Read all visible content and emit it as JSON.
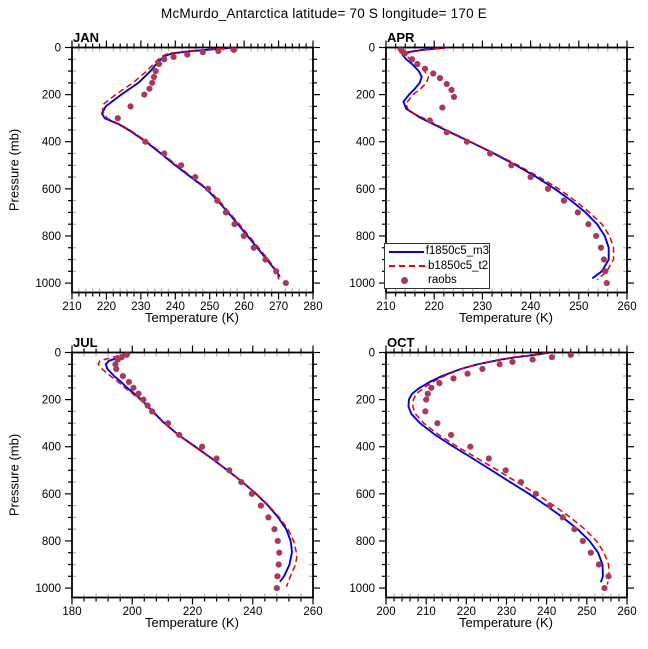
{
  "title": "McMurdo_Antarctica  latitude= 70 S longitude= 170 E",
  "ylabel": "Pressure (mb)",
  "legend": {
    "items": [
      {
        "label": "f1850c5_m3",
        "style": "solid",
        "color": "#0000dd"
      },
      {
        "label": "b1850c5_t2",
        "style": "dashed",
        "color": "#e60000"
      },
      {
        "label": "raobs",
        "style": "dots",
        "color": "#a63a5c"
      }
    ]
  },
  "chart_data": [
    {
      "type": "line",
      "label": "JAN",
      "xlabel": "Temperature (K)",
      "xlim": [
        210,
        280
      ],
      "xticks": [
        210,
        220,
        230,
        240,
        250,
        260,
        270,
        280
      ],
      "xminor": 2,
      "ylim": [
        0,
        1040
      ],
      "yticks": [
        0,
        200,
        400,
        600,
        800,
        1000
      ],
      "yminor": 50,
      "grid": false,
      "series": [
        {
          "name": "f1850c5_m3",
          "style": "solid",
          "pressure": [
            0,
            15,
            25,
            40,
            70,
            100,
            150,
            200,
            250,
            280,
            300,
            325,
            350,
            400,
            450,
            500,
            550,
            600,
            650,
            700,
            750,
            800,
            850,
            900,
            950,
            973
          ],
          "temperature": [
            257.5,
            245,
            239,
            236.5,
            234.5,
            232.8,
            229.3,
            224.3,
            219.8,
            218.7,
            219.5,
            223.5,
            226.5,
            231.5,
            235.8,
            240,
            244.5,
            249,
            252.3,
            255.3,
            258.2,
            261,
            263.8,
            266.6,
            269.3,
            270.4
          ]
        },
        {
          "name": "b1850c5_t2",
          "style": "dashed",
          "pressure": [
            0,
            15,
            25,
            40,
            70,
            100,
            150,
            200,
            240,
            270,
            300,
            325,
            350,
            400,
            450,
            500,
            550,
            600,
            650,
            700,
            750,
            800,
            850,
            900,
            950,
            985
          ],
          "temperature": [
            257,
            244,
            238,
            235.7,
            233.7,
            231.7,
            227.7,
            222.7,
            219.2,
            218.9,
            220.2,
            223.8,
            226.8,
            231.8,
            236.2,
            240.4,
            244.9,
            249.4,
            252.7,
            255.7,
            258.6,
            261.4,
            264.2,
            267,
            269.5,
            270.1
          ]
        },
        {
          "name": "raobs",
          "style": "dots",
          "pressure": [
            10,
            15,
            20,
            30,
            40,
            50,
            70,
            100,
            125,
            150,
            175,
            200,
            250,
            300,
            400,
            450,
            500,
            550,
            600,
            650,
            700,
            750,
            800,
            850,
            900,
            950,
            1000
          ],
          "temperature": [
            257,
            252.5,
            248,
            243.5,
            239.5,
            236.8,
            235.3,
            234.3,
            233.8,
            233.3,
            232.5,
            231,
            227,
            223.3,
            231.3,
            236.8,
            241.7,
            245.8,
            249.5,
            252.2,
            254.7,
            257.2,
            259.9,
            262.8,
            266.2,
            269.3,
            272.1
          ]
        }
      ]
    },
    {
      "type": "line",
      "label": "APR",
      "xlabel": "Temperature (K)",
      "xlim": [
        210,
        260
      ],
      "xticks": [
        210,
        220,
        230,
        240,
        250,
        260
      ],
      "xminor": 2,
      "ylim": [
        0,
        1040
      ],
      "yticks": [
        0,
        200,
        400,
        600,
        800,
        1000
      ],
      "yminor": 50,
      "grid": false,
      "series": [
        {
          "name": "f1850c5_m3",
          "style": "solid",
          "pressure": [
            0,
            10,
            20,
            30,
            50,
            70,
            100,
            125,
            150,
            175,
            200,
            230,
            260,
            300,
            350,
            400,
            450,
            500,
            550,
            600,
            650,
            700,
            750,
            800,
            850,
            900,
            950,
            980
          ],
          "temperature": [
            222.5,
            217.5,
            214.5,
            213.4,
            214.2,
            215.4,
            216.8,
            217.4,
            217,
            216,
            214.8,
            213.6,
            214.2,
            217.3,
            222.3,
            227.4,
            232.4,
            237,
            241.2,
            245,
            248.4,
            251.4,
            253.8,
            255.4,
            256.2,
            256.2,
            254.8,
            252.8
          ]
        },
        {
          "name": "b1850c5_t2",
          "style": "dashed",
          "pressure": [
            0,
            10,
            20,
            30,
            50,
            70,
            100,
            125,
            150,
            175,
            200,
            240,
            270,
            300,
            350,
            400,
            450,
            500,
            550,
            600,
            650,
            700,
            750,
            800,
            850,
            900,
            950,
            987
          ],
          "temperature": [
            223,
            218,
            215,
            214,
            215,
            216.4,
            218,
            218.8,
            218.4,
            217.2,
            215.6,
            214.1,
            214.8,
            217.8,
            222.6,
            227.6,
            232.6,
            237.4,
            241.8,
            245.8,
            249.2,
            252.2,
            254.8,
            256.4,
            257.2,
            257.2,
            255.8,
            253.8
          ]
        },
        {
          "name": "raobs",
          "style": "dots",
          "pressure": [
            5,
            15,
            25,
            50,
            70,
            90,
            110,
            130,
            155,
            180,
            210,
            255,
            310,
            360,
            400,
            450,
            500,
            550,
            600,
            650,
            700,
            750,
            800,
            850,
            900,
            950,
            1000
          ],
          "temperature": [
            213,
            213.3,
            213.9,
            215.4,
            216.5,
            218.1,
            219.8,
            221.2,
            222.6,
            223.6,
            224.1,
            221.7,
            219.1,
            222.6,
            226.8,
            231.6,
            236,
            240,
            243.6,
            246.9,
            249.8,
            252,
            253.6,
            254.6,
            255.2,
            255.5,
            255.8
          ]
        }
      ]
    },
    {
      "type": "line",
      "label": "JUL",
      "xlabel": "Temperature (K)",
      "xlim": [
        180,
        260
      ],
      "xticks": [
        180,
        200,
        220,
        240,
        260
      ],
      "xminor": 4,
      "ylim": [
        0,
        1040
      ],
      "yticks": [
        0,
        200,
        400,
        600,
        800,
        1000
      ],
      "yminor": 50,
      "grid": false,
      "series": [
        {
          "name": "f1850c5_m3",
          "style": "solid",
          "pressure": [
            0,
            10,
            20,
            35,
            50,
            70,
            100,
            125,
            150,
            175,
            200,
            225,
            250,
            275,
            300,
            350,
            400,
            450,
            500,
            550,
            600,
            650,
            700,
            750,
            800,
            830,
            850,
            900,
            950,
            973
          ],
          "temperature": [
            199.4,
            198.3,
            196,
            192.3,
            191.2,
            191.8,
            194,
            196.3,
            198.3,
            200.7,
            203,
            204.9,
            206.9,
            208.7,
            210.7,
            215.4,
            220.9,
            226.4,
            231.6,
            236.6,
            241.1,
            245.1,
            248.4,
            251.1,
            252.6,
            252.9,
            253,
            252.2,
            250.4,
            249
          ]
        },
        {
          "name": "b1850c5_t2",
          "style": "dashed",
          "pressure": [
            0,
            10,
            20,
            35,
            50,
            70,
            100,
            125,
            150,
            175,
            200,
            225,
            250,
            275,
            300,
            350,
            400,
            450,
            500,
            550,
            600,
            650,
            700,
            750,
            800,
            850,
            870,
            900,
            950,
            994
          ],
          "temperature": [
            198.4,
            196.6,
            193.6,
            189.3,
            188.7,
            190,
            192.8,
            195.3,
            197.6,
            200.1,
            202.6,
            204.6,
            206.6,
            208.5,
            210.5,
            215.2,
            220.7,
            226.2,
            231.5,
            236.6,
            241.2,
            245.3,
            248.8,
            251.7,
            253.6,
            254.5,
            254.6,
            254.2,
            252.5,
            251.2
          ]
        },
        {
          "name": "raobs",
          "style": "dots",
          "pressure": [
            10,
            20,
            30,
            50,
            70,
            100,
            125,
            150,
            175,
            200,
            225,
            250,
            300,
            350,
            400,
            450,
            500,
            550,
            600,
            650,
            700,
            750,
            800,
            850,
            900,
            950,
            1000
          ],
          "temperature": [
            198.2,
            196.5,
            195.2,
            194.4,
            194.7,
            196.9,
            198.9,
            200.4,
            202.1,
            203.7,
            205.1,
            206.6,
            211.9,
            215.6,
            223.2,
            228,
            232.2,
            236.2,
            239.7,
            242.7,
            245.2,
            247.2,
            248.3,
            248.8,
            248.6,
            248.2,
            248
          ]
        }
      ]
    },
    {
      "type": "line",
      "label": "OCT",
      "xlabel": "Temperature (K)",
      "xlim": [
        200,
        260
      ],
      "xticks": [
        200,
        210,
        220,
        230,
        240,
        250,
        260
      ],
      "xminor": 2,
      "ylim": [
        0,
        1040
      ],
      "yticks": [
        0,
        200,
        400,
        600,
        800,
        1000
      ],
      "yminor": 50,
      "grid": false,
      "series": [
        {
          "name": "f1850c5_m3",
          "style": "solid",
          "pressure": [
            0,
            10,
            20,
            30,
            50,
            70,
            100,
            125,
            150,
            175,
            200,
            230,
            260,
            300,
            350,
            400,
            450,
            500,
            550,
            600,
            650,
            700,
            750,
            800,
            850,
            900,
            950,
            975
          ],
          "temperature": [
            240.8,
            237,
            232.3,
            228.6,
            222.8,
            218.6,
            213.9,
            210.9,
            208.4,
            206.5,
            205.7,
            205.6,
            206.3,
            208.5,
            212.3,
            216.8,
            221.6,
            226.3,
            230.9,
            235.6,
            239.9,
            244,
            247.7,
            250.7,
            252.8,
            253.9,
            254,
            253.5
          ]
        },
        {
          "name": "b1850c5_t2",
          "style": "dashed",
          "pressure": [
            0,
            10,
            20,
            30,
            50,
            70,
            100,
            125,
            150,
            175,
            200,
            230,
            260,
            300,
            350,
            400,
            450,
            500,
            550,
            600,
            650,
            700,
            750,
            800,
            850,
            900,
            950,
            985
          ],
          "temperature": [
            240.4,
            236.6,
            231.9,
            228.2,
            222.6,
            218.8,
            214.5,
            211.7,
            209.4,
            207.6,
            206.8,
            206.7,
            207.3,
            209.4,
            213.2,
            217.8,
            222.8,
            227.8,
            232.6,
            237.4,
            241.8,
            245.9,
            249.5,
            252.4,
            254.3,
            255.4,
            255.6,
            255.1
          ]
        },
        {
          "name": "raobs",
          "style": "dots",
          "pressure": [
            10,
            20,
            30,
            40,
            50,
            70,
            90,
            110,
            130,
            150,
            175,
            200,
            250,
            300,
            350,
            400,
            450,
            500,
            550,
            600,
            650,
            700,
            750,
            800,
            850,
            900,
            950,
            1000
          ],
          "temperature": [
            246,
            241.3,
            236.5,
            231.5,
            228.3,
            224,
            220.3,
            216.8,
            213.3,
            211.3,
            210.4,
            210,
            209.8,
            212.8,
            216.2,
            221,
            225.6,
            229.8,
            233.6,
            237.3,
            240.8,
            244,
            246.9,
            249,
            251,
            253,
            255.4,
            254.4
          ]
        }
      ]
    }
  ]
}
